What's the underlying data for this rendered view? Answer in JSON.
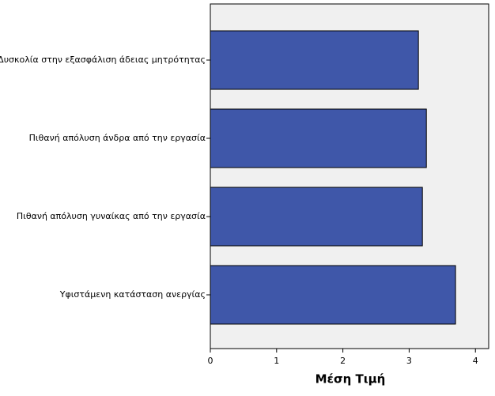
{
  "chart_data": {
    "type": "bar",
    "xlabel": "Μέση Τιμή",
    "categories": [
      "Δυσκολία στην εξασφάλιση άδειας μητρότητας",
      "Πιθανή απόλυση άνδρα από την εργασία",
      "Πιθανή απόλυση γυναίκας από την εργασία",
      "Υφιστάμενη κατάσταση ανεργίας"
    ],
    "values": [
      3.14,
      3.26,
      3.2,
      3.7
    ],
    "color": "#3f57a9",
    "xlim": [
      0,
      4.2
    ],
    "xticks": [
      0,
      1,
      2,
      3,
      4
    ]
  }
}
